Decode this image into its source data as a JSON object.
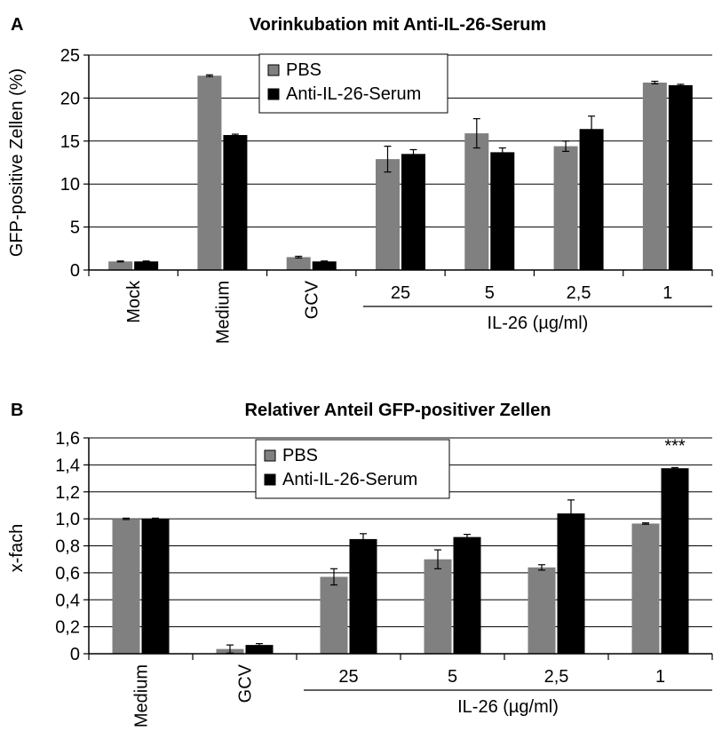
{
  "chart_data": [
    {
      "type": "bar",
      "panel_label": "A",
      "title": "Vorinkubation mit Anti-IL-26-Serum",
      "ylabel": "GFP-positive Zellen (%)",
      "ylim": [
        0,
        25
      ],
      "yticks": [
        "0",
        "5",
        "10",
        "15",
        "20",
        "25"
      ],
      "ytick_values": [
        0,
        5,
        10,
        15,
        20,
        25
      ],
      "categories": [
        "Mock",
        "Medium",
        "GCV",
        "25",
        "5",
        "2,5",
        "1"
      ],
      "rotated_categories": [
        "Mock",
        "Medium",
        "GCV"
      ],
      "group_label": "IL-26 (µg/ml)",
      "grid": true,
      "legend_position": "top",
      "series": [
        {
          "name": "PBS",
          "color": "#808080",
          "values": [
            1.0,
            22.6,
            1.5,
            12.9,
            15.9,
            14.4,
            21.8
          ],
          "errors": [
            0.05,
            0.1,
            0.1,
            1.5,
            1.7,
            0.6,
            0.15
          ]
        },
        {
          "name": "Anti-IL-26-Serum",
          "color": "#000000",
          "values": [
            1.0,
            15.7,
            1.0,
            13.5,
            13.7,
            16.4,
            21.5
          ],
          "errors": [
            0.05,
            0.1,
            0.05,
            0.5,
            0.5,
            1.5,
            0.1
          ]
        }
      ]
    },
    {
      "type": "bar",
      "panel_label": "B",
      "title": "Relativer Anteil GFP-positiver Zellen",
      "ylabel": "x-fach",
      "ylim": [
        0,
        1.6
      ],
      "yticks": [
        "0",
        "0,2",
        "0,4",
        "0,6",
        "0,8",
        "1,0",
        "1,2",
        "1,4",
        "1,6"
      ],
      "ytick_values": [
        0,
        0.2,
        0.4,
        0.6,
        0.8,
        1.0,
        1.2,
        1.4,
        1.6
      ],
      "categories": [
        "Medium",
        "GCV",
        "25",
        "5",
        "2,5",
        "1"
      ],
      "rotated_categories": [
        "Medium",
        "GCV"
      ],
      "group_label": "IL-26 (µg/ml)",
      "grid": true,
      "legend_position": "top",
      "annotations": [
        {
          "text": "***",
          "category": "1",
          "series": "Anti-IL-26-Serum"
        }
      ],
      "series": [
        {
          "name": "PBS",
          "color": "#808080",
          "values": [
            1.0,
            0.035,
            0.57,
            0.7,
            0.64,
            0.965
          ],
          "errors": [
            0.005,
            0.03,
            0.06,
            0.07,
            0.02,
            0.005
          ]
        },
        {
          "name": "Anti-IL-26-Serum",
          "color": "#000000",
          "values": [
            1.0,
            0.065,
            0.85,
            0.865,
            1.04,
            1.375
          ],
          "errors": [
            0.005,
            0.01,
            0.04,
            0.02,
            0.1,
            0.005
          ]
        }
      ]
    }
  ]
}
